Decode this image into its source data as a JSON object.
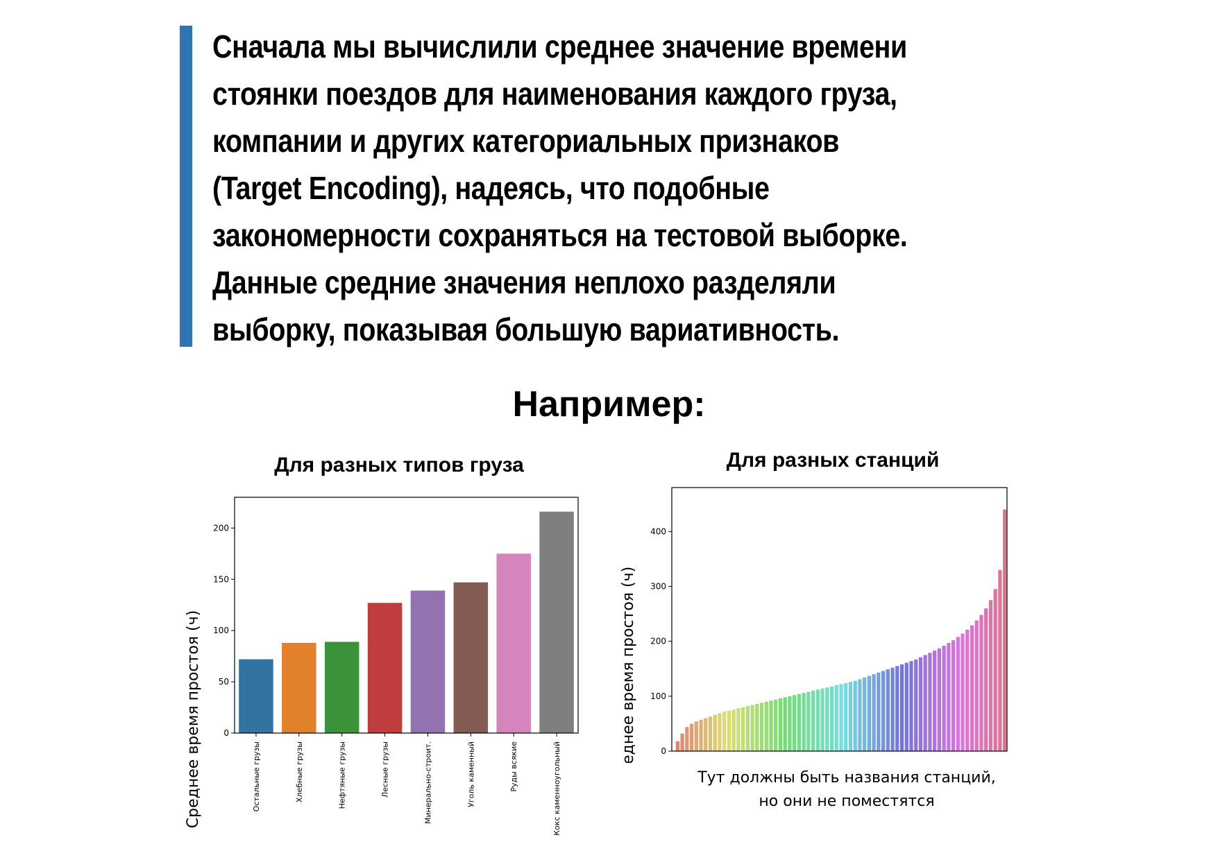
{
  "intro_lines": [
    "Сначала мы вычислили среднее значение времени",
    "стоянки поездов для наименования каждого груза,",
    "компании и других категориальных признаков",
    "(Target Encoding), надеясь, что подобные",
    "закономерности сохраняться на тестовой выборке.",
    "Данные средние значения неплохо разделяли",
    "выборку, показывая большую вариативность."
  ],
  "heading": "Например:",
  "chart_data": [
    {
      "type": "bar",
      "title": "Для разных типов груза",
      "ylabel": "Среднее время простоя (ч)",
      "xlabel": "",
      "ylim": [
        0,
        230
      ],
      "yticks": [
        "0",
        "50",
        "100",
        "150",
        "200"
      ],
      "categories": [
        "Остальные грузы",
        "Хлебные грузы",
        "Нефтяные грузы",
        "Лесные грузы",
        "Минерально-строит.",
        "Уголь каменный",
        "Руды всякие",
        "Кокс каменноугольный"
      ],
      "values": [
        72,
        88,
        89,
        127,
        139,
        147,
        175,
        216
      ],
      "colors": [
        "#3274a1",
        "#e1812c",
        "#3a923a",
        "#c03d3e",
        "#9372b2",
        "#845b53",
        "#d684bd",
        "#7f7f7f"
      ],
      "grid": false
    },
    {
      "type": "bar",
      "title": "Для разных станций",
      "ylabel": "Среднее время простоя (ч)",
      "xlabel": "",
      "ylim": [
        0,
        480
      ],
      "yticks": [
        "0",
        "100",
        "200",
        "300",
        "400"
      ],
      "values": [
        18,
        32,
        44,
        50,
        54,
        57,
        60,
        63,
        66,
        69,
        72,
        74,
        76,
        78,
        80,
        82,
        84,
        86,
        88,
        90,
        92,
        94,
        96,
        98,
        100,
        102,
        104,
        106,
        108,
        110,
        112,
        114,
        116,
        118,
        120,
        122,
        124,
        126,
        128,
        131,
        134,
        137,
        140,
        143,
        146,
        149,
        152,
        155,
        158,
        161,
        164,
        167,
        171,
        175,
        179,
        183,
        187,
        192,
        197,
        202,
        208,
        214,
        221,
        229,
        238,
        248,
        260,
        275,
        295,
        330,
        440
      ],
      "grid": false,
      "note": "Тут должны быть названия станций, но они не поместятся"
    }
  ]
}
